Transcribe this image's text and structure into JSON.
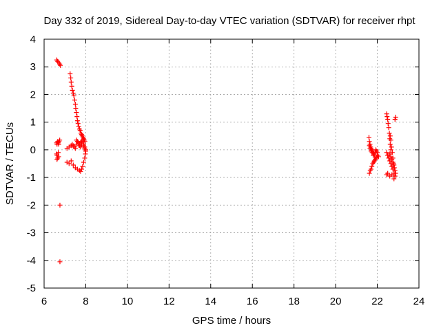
{
  "chart_data": {
    "type": "scatter",
    "title": "Day 332 of 2019, Sidereal Day-to-day VTEC variation (SDTVAR) for receiver rhpt",
    "xlabel": "GPS time / hours",
    "ylabel": "SDTVAR / TECUs",
    "xlim": [
      6,
      24
    ],
    "ylim": [
      -5,
      4
    ],
    "x_ticks": [
      "6",
      "8",
      "10",
      "12",
      "14",
      "16",
      "18",
      "20",
      "22",
      "24"
    ],
    "y_ticks": [
      "4",
      "3",
      "2",
      "1",
      "0",
      "-1",
      "-2",
      "-3",
      "-4",
      "-5"
    ],
    "grid": true,
    "marker": "+",
    "series_color": "#ff0000",
    "series": [
      {
        "name": "SDTVAR",
        "x": [
          6.6,
          6.65,
          6.7,
          6.75,
          6.78,
          6.6,
          6.62,
          6.65,
          6.68,
          6.7,
          6.72,
          6.75,
          6.62,
          6.65,
          6.7,
          6.6,
          6.62,
          6.68,
          6.76,
          6.76,
          7.25,
          7.28,
          7.3,
          7.33,
          7.36,
          7.4,
          7.43,
          7.47,
          7.5,
          7.52,
          7.55,
          7.58,
          7.6,
          7.63,
          7.66,
          7.7,
          7.73,
          7.77,
          7.8,
          7.83,
          7.87,
          7.9,
          7.93,
          7.96,
          7.1,
          7.2,
          7.3,
          7.35,
          7.4,
          7.45,
          7.5,
          7.55,
          7.6,
          7.65,
          7.7,
          7.75,
          7.8,
          7.85,
          7.9,
          7.95,
          7.1,
          7.2,
          7.3,
          7.4,
          7.5,
          7.6,
          7.7,
          7.75,
          7.8,
          7.85,
          7.9,
          7.95,
          7.98,
          8.0,
          7.55,
          7.6,
          7.65,
          7.7,
          7.75,
          7.8,
          7.85,
          7.9,
          7.95,
          8.0,
          21.6,
          21.62,
          21.65,
          21.68,
          21.7,
          21.73,
          21.76,
          21.8,
          21.83,
          21.86,
          21.9,
          21.93,
          21.96,
          22.0,
          22.03,
          22.06,
          21.62,
          21.66,
          21.7,
          21.74,
          21.78,
          21.82,
          21.86,
          21.9,
          21.94,
          21.98,
          22.02,
          21.62,
          21.65,
          21.7,
          21.75,
          21.8,
          22.45,
          22.47,
          22.5,
          22.52,
          22.55,
          22.58,
          22.6,
          22.62,
          22.65,
          22.45,
          22.5,
          22.55,
          22.6,
          22.65,
          22.7,
          22.75,
          22.8,
          22.85,
          22.5,
          22.55,
          22.6,
          22.65,
          22.7,
          22.75,
          22.8,
          22.45,
          22.5,
          22.6,
          22.7,
          22.8,
          22.62,
          22.65,
          22.68,
          22.72,
          22.75,
          22.78,
          22.82,
          22.85,
          22.88,
          22.85,
          22.88
        ],
        "y": [
          3.25,
          3.2,
          3.15,
          3.1,
          3.05,
          0.25,
          0.2,
          0.3,
          0.25,
          0.2,
          0.3,
          0.35,
          -0.2,
          -0.3,
          -0.25,
          -0.15,
          -0.35,
          -0.1,
          -2.0,
          -4.05,
          2.75,
          2.6,
          2.45,
          2.3,
          2.15,
          2.05,
          1.95,
          1.8,
          1.65,
          1.5,
          1.35,
          1.2,
          1.05,
          0.95,
          0.85,
          0.75,
          0.7,
          0.6,
          0.55,
          0.5,
          0.45,
          0.4,
          0.35,
          0.3,
          0.05,
          0.1,
          0.15,
          0.2,
          0.15,
          0.1,
          0.05,
          0.2,
          0.3,
          0.25,
          0.15,
          0.1,
          0.2,
          0.3,
          0.15,
          0.05,
          -0.45,
          -0.5,
          -0.4,
          -0.55,
          -0.65,
          -0.7,
          -0.75,
          -0.78,
          -0.7,
          -0.6,
          -0.45,
          -0.3,
          -0.15,
          -0.05,
          0.35,
          0.3,
          0.25,
          0.2,
          0.25,
          0.3,
          0.35,
          0.2,
          0.1,
          0.0,
          0.45,
          0.3,
          0.2,
          0.1,
          0.05,
          0.0,
          -0.05,
          -0.1,
          -0.15,
          -0.2,
          -0.1,
          0.0,
          -0.05,
          -0.1,
          -0.2,
          -0.25,
          -0.85,
          -0.75,
          -0.7,
          -0.6,
          -0.5,
          -0.45,
          -0.4,
          -0.35,
          -0.3,
          -0.25,
          -0.2,
          0.15,
          0.05,
          -0.05,
          -0.1,
          -0.2,
          1.3,
          1.2,
          1.1,
          0.95,
          0.8,
          0.6,
          0.4,
          0.2,
          0.0,
          -0.1,
          -0.2,
          -0.3,
          -0.4,
          -0.5,
          -0.6,
          -0.7,
          -0.85,
          -0.95,
          -0.2,
          -0.3,
          -0.15,
          -0.25,
          -0.35,
          -0.45,
          -0.55,
          -0.9,
          -0.85,
          -0.95,
          -0.9,
          -1.05,
          0.5,
          0.35,
          0.1,
          -0.1,
          -0.3,
          -0.5,
          -0.65,
          -0.75,
          -0.85,
          1.1,
          1.18
        ]
      }
    ]
  }
}
